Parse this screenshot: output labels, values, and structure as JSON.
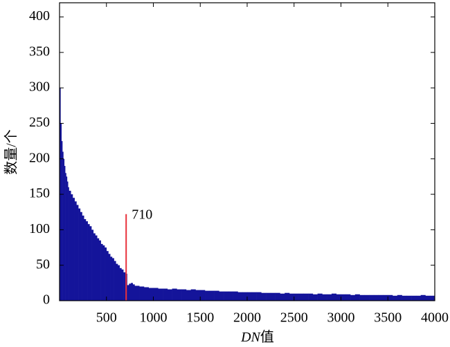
{
  "chart_data": {
    "type": "histogram",
    "xlabel": [
      "DN",
      "值"
    ],
    "ylabel": "数量/个",
    "bins": [
      0,
      10,
      20,
      30,
      40,
      50,
      60,
      70,
      80,
      90,
      100,
      120,
      140,
      160,
      180,
      200,
      220,
      240,
      260,
      280,
      300,
      320,
      340,
      360,
      380,
      400,
      420,
      440,
      460,
      480,
      500,
      520,
      540,
      560,
      580,
      600,
      620,
      640,
      660,
      680,
      700,
      720,
      740,
      760,
      780,
      800,
      850,
      900,
      950,
      1000,
      1050,
      1100,
      1150,
      1200,
      1250,
      1300,
      1350,
      1400,
      1450,
      1500,
      1550,
      1600,
      1650,
      1700,
      1750,
      1800,
      1850,
      1900,
      1950,
      2000,
      2050,
      2100,
      2150,
      2200,
      2250,
      2300,
      2350,
      2400,
      2450,
      2500,
      2550,
      2600,
      2650,
      2700,
      2750,
      2800,
      2850,
      2900,
      2950,
      3000,
      3050,
      3100,
      3150,
      3200,
      3250,
      3300,
      3350,
      3400,
      3450,
      3500,
      3550,
      3600,
      3650,
      3700,
      3750,
      3800,
      3850,
      3900,
      3950,
      4000
    ],
    "values": [
      300,
      250,
      225,
      210,
      200,
      190,
      180,
      175,
      168,
      160,
      155,
      150,
      145,
      140,
      135,
      130,
      125,
      120,
      115,
      112,
      108,
      105,
      100,
      95,
      92,
      88,
      85,
      80,
      78,
      75,
      70,
      66,
      62,
      60,
      56,
      52,
      50,
      46,
      44,
      40,
      38,
      22,
      24,
      25,
      23,
      21,
      20,
      19,
      18,
      18,
      17,
      17,
      16,
      17,
      16,
      16,
      15,
      16,
      15,
      15,
      14,
      14,
      14,
      13,
      13,
      13,
      13,
      12,
      12,
      12,
      12,
      12,
      11,
      11,
      11,
      11,
      10,
      11,
      10,
      10,
      10,
      10,
      10,
      9,
      10,
      9,
      9,
      10,
      9,
      9,
      9,
      8,
      9,
      8,
      8,
      8,
      8,
      8,
      8,
      8,
      7,
      8,
      7,
      7,
      7,
      7,
      8,
      7,
      7
    ],
    "color": "#14149a",
    "annotation": {
      "label": "710",
      "x": 710,
      "y": 122,
      "color": "#e8303a"
    },
    "xlim": [
      0,
      4000
    ],
    "xticks": [
      500,
      1000,
      1500,
      2000,
      2500,
      3000,
      3500,
      4000
    ],
    "ylim": [
      0,
      420
    ],
    "yticks": [
      0,
      50,
      100,
      150,
      200,
      250,
      300,
      350,
      400
    ]
  }
}
